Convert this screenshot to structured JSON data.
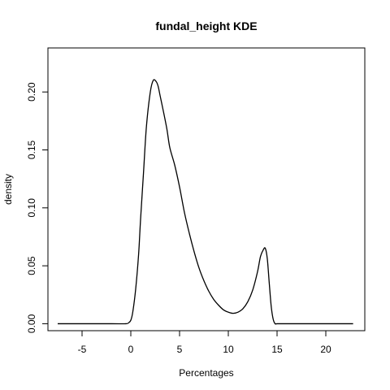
{
  "chart_data": {
    "type": "line",
    "title": "fundal_height  KDE",
    "xlabel": "Percentages",
    "ylabel": "density",
    "xlim": [
      -8.5,
      24
    ],
    "ylim": [
      -0.006,
      0.238
    ],
    "xticks": [
      -5,
      0,
      5,
      10,
      15,
      20
    ],
    "yticks": [
      0.0,
      0.05,
      0.1,
      0.15,
      0.2
    ],
    "ytick_labels": [
      "0.00",
      "0.05",
      "0.10",
      "0.15",
      "0.20"
    ],
    "grid": false,
    "legend": "none",
    "series": [
      {
        "color": "#000000",
        "x": [
          -7.5,
          -5,
          -2,
          -0.5,
          -0.2,
          0.0,
          0.2,
          0.5,
          0.8,
          1.0,
          1.3,
          1.6,
          2.0,
          2.3,
          2.6,
          2.8,
          3.0,
          3.3,
          3.7,
          4.0,
          4.5,
          5.0,
          5.5,
          6.0,
          6.5,
          7.0,
          7.5,
          8.0,
          8.5,
          9.0,
          9.5,
          10.0,
          10.5,
          11.0,
          11.5,
          12.0,
          12.5,
          13.0,
          13.3,
          13.6,
          13.8,
          14.0,
          14.2,
          14.4,
          14.6,
          14.8,
          15.0,
          16,
          18,
          20,
          22.8
        ],
        "y": [
          0.0,
          0.0,
          0.0,
          0.0,
          0.001,
          0.003,
          0.01,
          0.03,
          0.06,
          0.09,
          0.13,
          0.17,
          0.2,
          0.21,
          0.209,
          0.205,
          0.197,
          0.185,
          0.168,
          0.152,
          0.137,
          0.118,
          0.096,
          0.078,
          0.062,
          0.048,
          0.037,
          0.028,
          0.021,
          0.016,
          0.012,
          0.01,
          0.009,
          0.01,
          0.013,
          0.019,
          0.029,
          0.045,
          0.058,
          0.064,
          0.065,
          0.056,
          0.035,
          0.015,
          0.004,
          0.0,
          0.0,
          0.0,
          0.0,
          0.0,
          0.0
        ]
      }
    ]
  }
}
